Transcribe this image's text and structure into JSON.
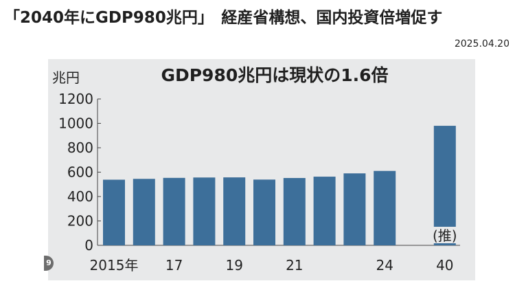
{
  "headline": "「2040年にGDP980兆円」　経産省構想、国内投資倍増促す",
  "date": "2025.04.20",
  "badge": "9",
  "chart_data": {
    "type": "bar",
    "title": "GDP980兆円は現状の1.6倍",
    "ylabel": "兆円",
    "ylim": [
      0,
      1200
    ],
    "yticks": [
      0,
      200,
      400,
      600,
      800,
      1000,
      1200
    ],
    "categories": [
      "2015",
      "2016",
      "2017",
      "2018",
      "2019",
      "2020",
      "2021",
      "2022",
      "2023",
      "2024",
      "2040"
    ],
    "values": [
      538,
      545,
      553,
      556,
      557,
      539,
      552,
      563,
      590,
      610,
      980
    ],
    "x_tick_labels": [
      "2015年",
      "",
      "17",
      "",
      "19",
      "",
      "21",
      "",
      "",
      "24",
      "40"
    ],
    "annotations": [
      {
        "category": "2040",
        "text": "(推)"
      }
    ],
    "bar_color": "#3d6f9a",
    "background_color": "#e8e9ea",
    "grid": false,
    "legend": "none"
  }
}
